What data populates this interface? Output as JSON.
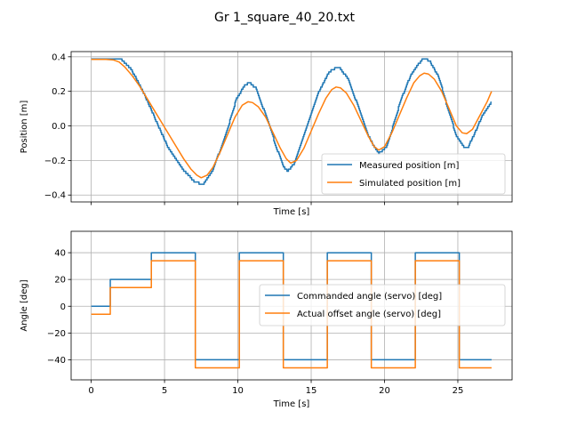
{
  "title": "Gr 1_square_40_20.txt",
  "colors": {
    "series1": "#1f77b4",
    "series2": "#ff7f0e",
    "grid": "#b0b0b0"
  },
  "chart_data": [
    {
      "type": "line",
      "xlabel": "Time [s]",
      "ylabel": "Position [m]",
      "xlim": [
        -1.37,
        28.7
      ],
      "ylim": [
        -0.44,
        0.43
      ],
      "xticks": [
        0,
        5,
        10,
        15,
        20,
        25
      ],
      "show_xtick_labels": false,
      "yticks": [
        -0.4,
        -0.2,
        0.0,
        0.2,
        0.4
      ],
      "ytick_labels": [
        "−0.4",
        "−0.2",
        "0.0",
        "0.2",
        "0.4"
      ],
      "grid": true,
      "legend": "lower-right",
      "series": [
        {
          "name": "Measured position [m]",
          "color": "#1f77b4",
          "step_y": 0.0125,
          "x": [
            0,
            2.0,
            2.7,
            3.5,
            4.3,
            5.2,
            6.2,
            7.0,
            7.6,
            8.3,
            9.2,
            9.9,
            10.5,
            10.8,
            11.2,
            11.9,
            12.6,
            13.1,
            13.4,
            13.8,
            14.6,
            15.4,
            16.2,
            16.7,
            17.0,
            17.5,
            18.2,
            19.0,
            19.6,
            20.1,
            20.5,
            21.1,
            21.8,
            22.5,
            22.8,
            23.1,
            23.7,
            24.3,
            24.9,
            25.4,
            25.7,
            26.1,
            26.6,
            27.3
          ],
          "y": [
            0.387,
            0.387,
            0.33,
            0.2,
            0.05,
            -0.12,
            -0.25,
            -0.32,
            -0.34,
            -0.25,
            -0.04,
            0.16,
            0.24,
            0.25,
            0.22,
            0.06,
            -0.12,
            -0.24,
            -0.26,
            -0.22,
            -0.02,
            0.18,
            0.31,
            0.34,
            0.33,
            0.27,
            0.11,
            -0.08,
            -0.16,
            -0.12,
            -0.02,
            0.15,
            0.3,
            0.38,
            0.39,
            0.37,
            0.28,
            0.1,
            -0.06,
            -0.12,
            -0.12,
            -0.05,
            0.05,
            0.14
          ]
        },
        {
          "name": "Simulated position [m]",
          "color": "#ff7f0e",
          "x": [
            0,
            0.5,
            1.0,
            1.5,
            1.9,
            2.3,
            2.8,
            3.3,
            3.8,
            4.3,
            4.8,
            5.3,
            5.8,
            6.3,
            6.8,
            7.2,
            7.5,
            7.9,
            8.3,
            8.8,
            9.3,
            9.8,
            10.3,
            10.7,
            11.0,
            11.4,
            11.9,
            12.4,
            12.9,
            13.3,
            13.6,
            14.0,
            14.5,
            15.0,
            15.5,
            16.0,
            16.4,
            16.7,
            17.0,
            17.4,
            17.9,
            18.4,
            18.9,
            19.3,
            19.6,
            20.0,
            20.5,
            21.0,
            21.5,
            22.0,
            22.4,
            22.7,
            23.0,
            23.4,
            23.9,
            24.4,
            24.9,
            25.3,
            25.6,
            26.0,
            26.5,
            27.0,
            27.3
          ],
          "y": [
            0.385,
            0.385,
            0.385,
            0.382,
            0.37,
            0.34,
            0.29,
            0.23,
            0.16,
            0.09,
            0.02,
            -0.05,
            -0.12,
            -0.19,
            -0.25,
            -0.285,
            -0.3,
            -0.285,
            -0.24,
            -0.15,
            -0.05,
            0.05,
            0.12,
            0.14,
            0.135,
            0.11,
            0.05,
            -0.04,
            -0.13,
            -0.19,
            -0.215,
            -0.2,
            -0.13,
            -0.03,
            0.07,
            0.16,
            0.21,
            0.225,
            0.22,
            0.19,
            0.12,
            0.03,
            -0.06,
            -0.12,
            -0.14,
            -0.12,
            -0.04,
            0.06,
            0.16,
            0.25,
            0.29,
            0.305,
            0.3,
            0.27,
            0.2,
            0.1,
            0.0,
            -0.04,
            -0.045,
            -0.02,
            0.06,
            0.14,
            0.2
          ]
        }
      ]
    },
    {
      "type": "line",
      "xlabel": "Time [s]",
      "ylabel": "Angle [deg]",
      "xlim": [
        -1.37,
        28.7
      ],
      "ylim": [
        -55,
        56
      ],
      "xticks": [
        0,
        5,
        10,
        15,
        20,
        25
      ],
      "show_xtick_labels": true,
      "yticks": [
        -40,
        -20,
        0,
        20,
        40
      ],
      "ytick_labels": [
        "−40",
        "−20",
        "0",
        "20",
        "40"
      ],
      "grid": true,
      "legend": "center-right",
      "series": [
        {
          "name": "Commanded angle (servo) [deg]",
          "color": "#1f77b4",
          "x": [
            0,
            1.3,
            1.3,
            4.1,
            4.1,
            7.1,
            7.1,
            10.1,
            10.1,
            13.1,
            13.1,
            16.1,
            16.1,
            19.1,
            19.1,
            22.1,
            22.1,
            25.1,
            25.1,
            27.3
          ],
          "y": [
            0,
            0,
            20,
            20,
            40,
            40,
            -40,
            -40,
            40,
            40,
            -40,
            -40,
            40,
            40,
            -40,
            -40,
            40,
            40,
            -40,
            -40
          ]
        },
        {
          "name": "Actual offset angle (servo) [deg]",
          "color": "#ff7f0e",
          "x": [
            0,
            1.3,
            1.3,
            4.1,
            4.1,
            7.1,
            7.1,
            10.1,
            10.1,
            13.1,
            13.1,
            16.1,
            16.1,
            19.1,
            19.1,
            22.1,
            22.1,
            25.1,
            25.1,
            27.3
          ],
          "y": [
            -6,
            -6,
            14,
            14,
            34,
            34,
            -46,
            -46,
            34,
            34,
            -46,
            -46,
            34,
            34,
            -46,
            -46,
            34,
            34,
            -46,
            -46
          ]
        }
      ]
    }
  ]
}
